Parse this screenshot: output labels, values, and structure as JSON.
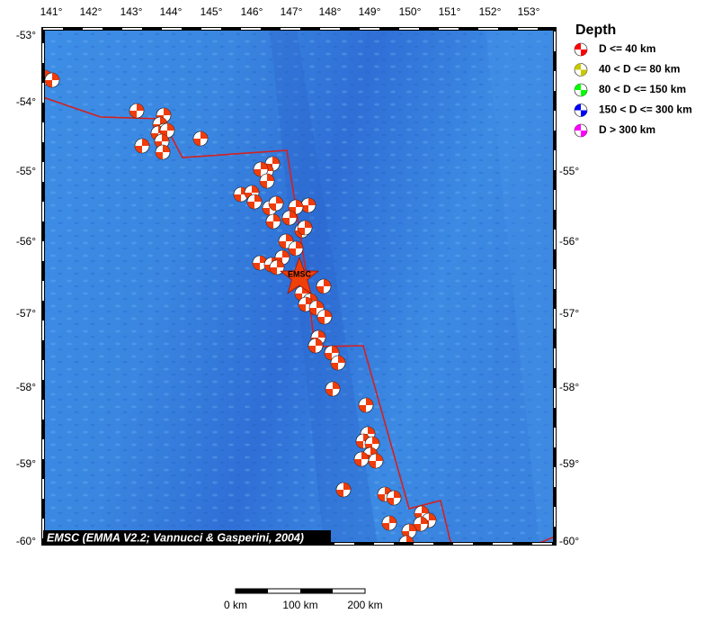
{
  "map": {
    "lon_labels": [
      "141°",
      "142°",
      "143°",
      "144°",
      "145°",
      "146°",
      "147°",
      "148°",
      "149°",
      "150°",
      "151°",
      "152°",
      "153°"
    ],
    "lat_labels": [
      "-53°",
      "-54°",
      "-55°",
      "-56°",
      "-57°",
      "-58°",
      "-59°",
      "-60°"
    ],
    "credit": "EMSC (EMMA V2.2; Vannucci & Gasperini, 2004)",
    "event_label": "EMSC"
  },
  "legend": {
    "title": "Depth",
    "items": [
      "D <= 40 km",
      "40 < D <= 80 km",
      "80 < D <= 150 km",
      "150 < D <= 300 km",
      "D > 300 km"
    ]
  },
  "scale_bar": {
    "labels": [
      "0 km",
      "100 km",
      "200 km"
    ]
  }
}
